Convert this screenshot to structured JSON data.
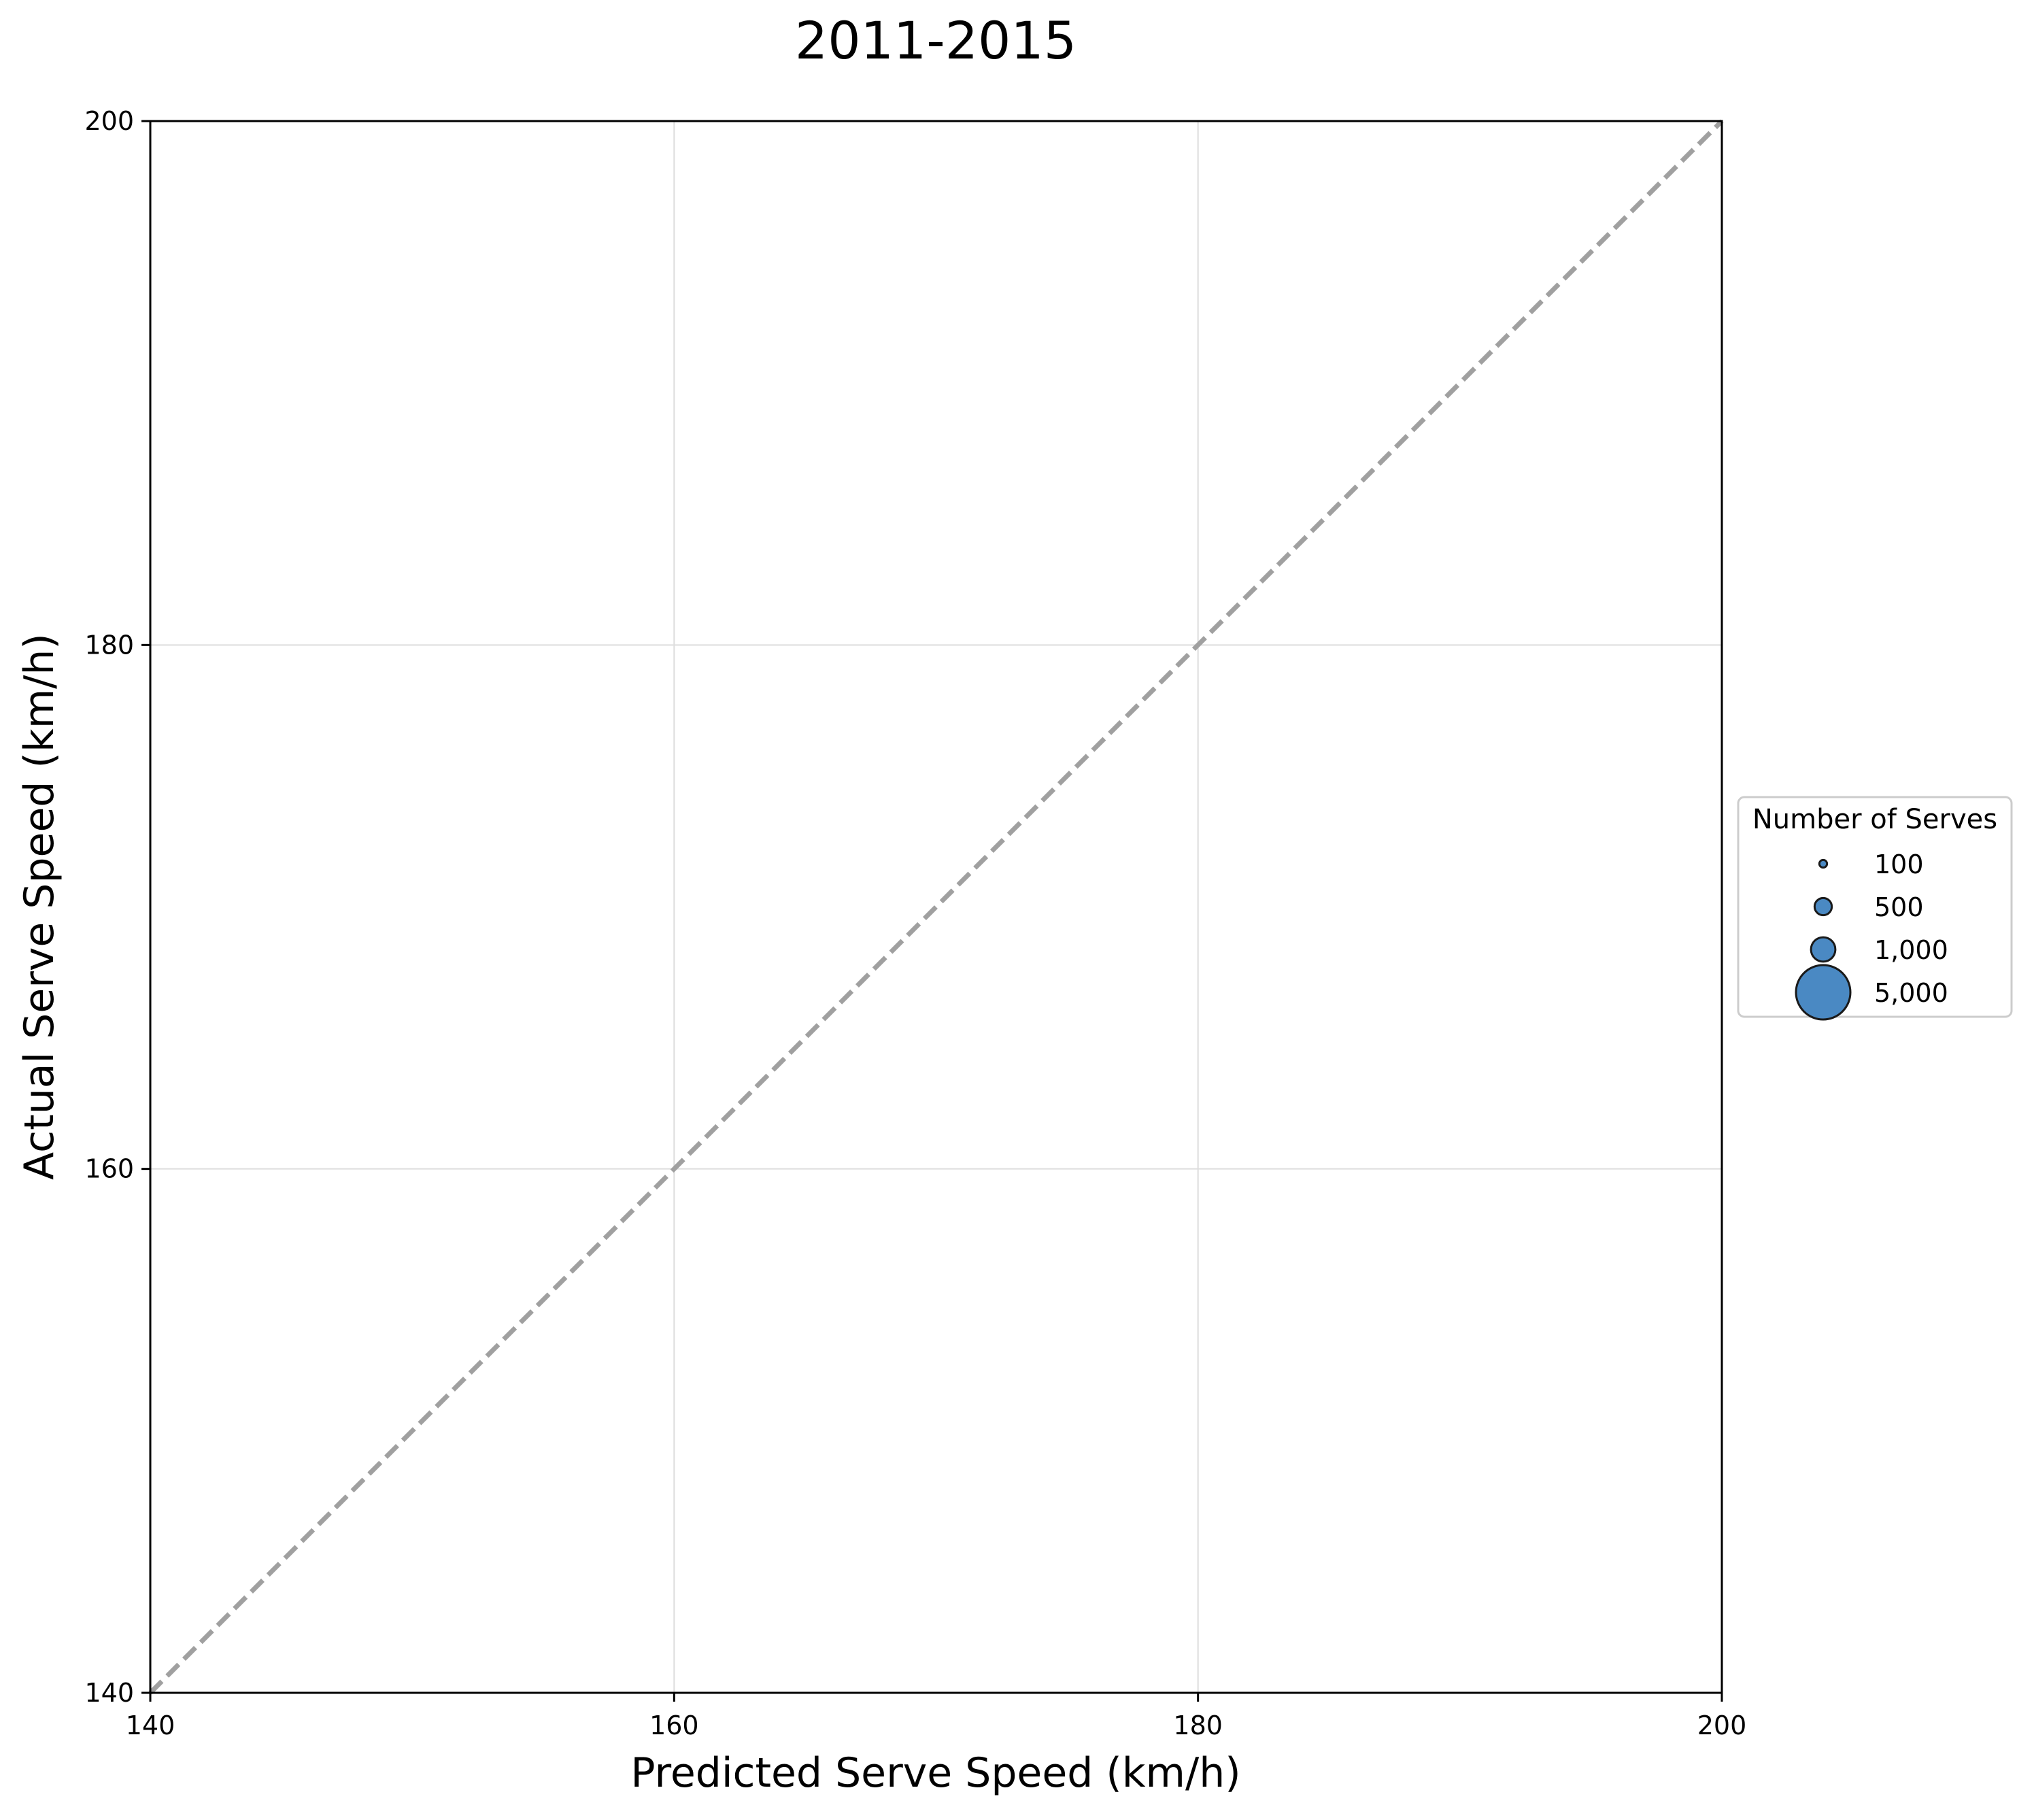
{
  "chart_data": {
    "type": "scatter",
    "title": "2011-2015",
    "xlabel": "Predicted Serve Speed (km/h)",
    "ylabel": "Actual Serve Speed (km/h)",
    "xlim": [
      140,
      200
    ],
    "ylim": [
      140,
      200
    ],
    "xticks": [
      140,
      160,
      180,
      200
    ],
    "yticks": [
      140,
      160,
      180,
      200
    ],
    "x_tick_labels": [
      "140",
      "160",
      "180",
      "200"
    ],
    "y_tick_labels": [
      "140",
      "160",
      "180",
      "200"
    ],
    "grid": true,
    "reference_line": {
      "from": [
        140,
        140
      ],
      "to": [
        200,
        200
      ],
      "style": "dashed",
      "color": "#a0a0a0"
    },
    "series": [
      {
        "points": [],
        "color": "#4a89c3",
        "edgecolor": "#1a1a1a"
      }
    ],
    "legend": {
      "title": "Number of Serves",
      "placement": "outside-right",
      "entries": [
        {
          "label": "100",
          "value": 100
        },
        {
          "label": "500",
          "value": 500
        },
        {
          "label": "1,000",
          "value": 1000
        },
        {
          "label": "5,000",
          "value": 5000
        }
      ],
      "marker_color": "#4a89c3",
      "marker_edge": "#1a1a1a"
    }
  }
}
